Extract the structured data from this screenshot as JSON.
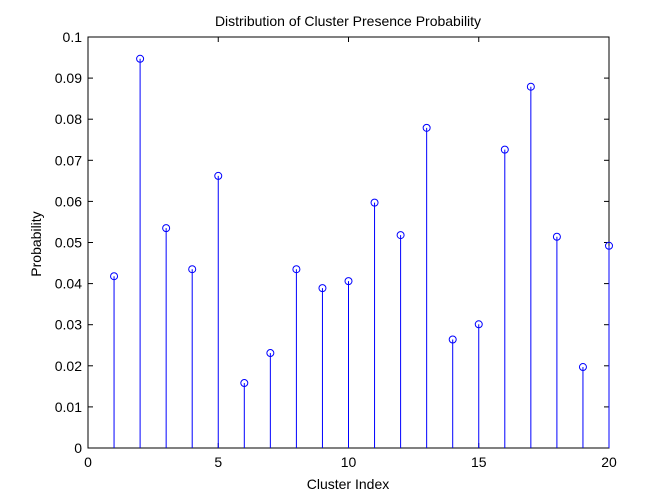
{
  "chart_data": {
    "type": "stem",
    "title": "Distribution of Cluster Presence Probability",
    "xlabel": "Cluster Index",
    "ylabel": "Probability",
    "xlim": [
      0,
      20
    ],
    "ylim": [
      0,
      0.1
    ],
    "xticks": [
      "0",
      "5",
      "10",
      "15",
      "20"
    ],
    "yticks": [
      "0",
      "0.01",
      "0.02",
      "0.03",
      "0.04",
      "0.05",
      "0.06",
      "0.07",
      "0.08",
      "0.09",
      "0.1"
    ],
    "x": [
      1,
      2,
      3,
      4,
      5,
      6,
      7,
      8,
      9,
      10,
      11,
      12,
      13,
      14,
      15,
      16,
      17,
      18,
      19,
      20
    ],
    "values": [
      0.0418,
      0.0947,
      0.0535,
      0.0435,
      0.0662,
      0.0158,
      0.0231,
      0.0435,
      0.0389,
      0.0406,
      0.0597,
      0.0518,
      0.0779,
      0.0264,
      0.0301,
      0.0726,
      0.0879,
      0.0514,
      0.0197,
      0.0492
    ],
    "series_color": "#0000ff",
    "grid": false
  }
}
